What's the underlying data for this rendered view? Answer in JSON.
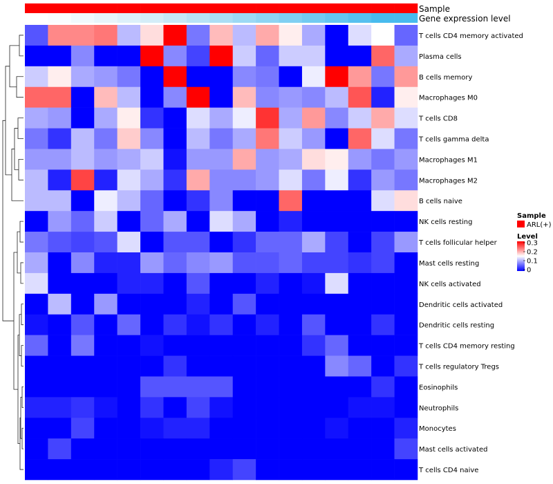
{
  "chart_data": {
    "type": "heatmap",
    "annotation_tracks": [
      "Sample",
      "Gene expression level"
    ],
    "legend": {
      "sample_title": "Sample",
      "sample_entries": [
        {
          "label": "ARL(+)",
          "color": "#ff0000"
        }
      ],
      "level_title": "Level",
      "level_ticks": [
        "0.3",
        "0.2",
        "0.1",
        "0"
      ],
      "level_colors": [
        "#0000ff",
        "#ffffff",
        "#ff0000"
      ],
      "level_range": [
        0,
        0.3
      ]
    },
    "expression_track_colors": [
      "#ffffff",
      "#fafdfe",
      "#f0f9fd",
      "#e7f5fb",
      "#ddf1fa",
      "#d4edf8",
      "#c6e8f7",
      "#b8e3f6",
      "#aadef5",
      "#9cd9f4",
      "#8ed4f3",
      "#80cff2",
      "#72caf1",
      "#64c5f0",
      "#56c0ef",
      "#48bbee"
    ],
    "rows": [
      "T cells CD4 memory activated",
      "Plasma cells",
      "B cells memory",
      "Macrophages M0",
      "T cells CD8",
      "T cells gamma delta",
      "Macrophages M1",
      "Macrophages M2",
      "B cells naive",
      "NK cells resting",
      "T cells follicular helper",
      "Mast cells resting",
      "NK cells activated",
      "Dendritic cells activated",
      "Dendritic cells resting",
      "T cells CD4 memory resting",
      "T cells regulatory  Tregs",
      "Eosinophils",
      "Neutrophils",
      "Monocytes",
      "Mast cells activated",
      "T cells CD4 naive"
    ],
    "values": [
      [
        0.05,
        0.22,
        0.22,
        0.23,
        0.11,
        0.17,
        0.3,
        0.07,
        0.19,
        0.11,
        0.2,
        0.16,
        0.1,
        0.0,
        0.13,
        0.15,
        0.06
      ],
      [
        0.0,
        0.0,
        0.08,
        0.0,
        0.0,
        0.3,
        0.08,
        0.04,
        0.3,
        0.12,
        0.06,
        0.12,
        0.12,
        0.0,
        0.0,
        0.24,
        0.1
      ],
      [
        0.12,
        0.16,
        0.1,
        0.09,
        0.07,
        0.0,
        0.3,
        0.0,
        0.0,
        0.08,
        0.07,
        0.0,
        0.14,
        0.3,
        0.21,
        0.07,
        0.21
      ],
      [
        0.24,
        0.24,
        0.0,
        0.19,
        0.11,
        0.0,
        0.08,
        0.3,
        0.0,
        0.19,
        0.08,
        0.09,
        0.08,
        0.11,
        0.25,
        0.02,
        0.16
      ],
      [
        0.1,
        0.09,
        0.0,
        0.1,
        0.16,
        0.03,
        0.0,
        0.13,
        0.1,
        0.14,
        0.27,
        0.1,
        0.21,
        0.08,
        0.12,
        0.2,
        0.13
      ],
      [
        0.07,
        0.03,
        0.11,
        0.07,
        0.18,
        0.08,
        0.0,
        0.11,
        0.07,
        0.1,
        0.23,
        0.12,
        0.09,
        0.0,
        0.24,
        0.13,
        0.07
      ],
      [
        0.09,
        0.09,
        0.11,
        0.09,
        0.1,
        0.12,
        0.01,
        0.09,
        0.09,
        0.2,
        0.09,
        0.1,
        0.17,
        0.16,
        0.09,
        0.07,
        0.09
      ],
      [
        0.11,
        0.02,
        0.26,
        0.02,
        0.13,
        0.1,
        0.03,
        0.2,
        0.08,
        0.08,
        0.09,
        0.13,
        0.07,
        0.14,
        0.03,
        0.09,
        0.07
      ],
      [
        0.11,
        0.11,
        0.0,
        0.14,
        0.11,
        0.06,
        0.0,
        0.03,
        0.08,
        0.0,
        0.0,
        0.24,
        0.0,
        0.0,
        0.0,
        0.13,
        0.17
      ],
      [
        0.0,
        0.09,
        0.06,
        0.12,
        0.0,
        0.06,
        0.1,
        0.0,
        0.13,
        0.1,
        0.0,
        0.02,
        0.0,
        0.0,
        0.0,
        0.0,
        0.0
      ],
      [
        0.07,
        0.05,
        0.04,
        0.05,
        0.13,
        0.0,
        0.05,
        0.05,
        0.0,
        0.03,
        0.06,
        0.06,
        0.1,
        0.04,
        0.0,
        0.04,
        0.09
      ],
      [
        0.1,
        0.0,
        0.08,
        0.02,
        0.02,
        0.09,
        0.06,
        0.08,
        0.09,
        0.05,
        0.05,
        0.06,
        0.04,
        0.04,
        0.03,
        0.04,
        0.0
      ],
      [
        0.13,
        0.0,
        0.0,
        0.0,
        0.02,
        0.02,
        0.0,
        0.05,
        0.0,
        0.0,
        0.02,
        0.0,
        0.01,
        0.13,
        0.0,
        0.0,
        0.0
      ],
      [
        0.0,
        0.11,
        0.0,
        0.09,
        0.0,
        0.0,
        0.0,
        0.02,
        0.0,
        0.05,
        0.0,
        0.0,
        0.0,
        0.0,
        0.0,
        0.0,
        0.0
      ],
      [
        0.01,
        0.0,
        0.05,
        0.0,
        0.06,
        0.0,
        0.03,
        0.01,
        0.03,
        0.0,
        0.02,
        0.0,
        0.05,
        0.0,
        0.0,
        0.03,
        0.0
      ],
      [
        0.06,
        0.0,
        0.07,
        0.0,
        0.0,
        0.01,
        0.0,
        0.0,
        0.0,
        0.0,
        0.0,
        0.0,
        0.03,
        0.06,
        0.0,
        0.0,
        0.0
      ],
      [
        0.0,
        0.0,
        0.0,
        0.0,
        0.0,
        0.0,
        0.03,
        0.0,
        0.0,
        0.0,
        0.0,
        0.0,
        0.0,
        0.08,
        0.06,
        0.0,
        0.03
      ],
      [
        0.0,
        0.0,
        0.0,
        0.0,
        0.0,
        0.05,
        0.05,
        0.05,
        0.05,
        0.0,
        0.0,
        0.0,
        0.0,
        0.0,
        0.0,
        0.03,
        0.0
      ],
      [
        0.02,
        0.02,
        0.03,
        0.01,
        0.0,
        0.03,
        0.0,
        0.04,
        0.01,
        0.0,
        0.0,
        0.0,
        0.0,
        0.0,
        0.01,
        0.01,
        0.0
      ],
      [
        0.0,
        0.0,
        0.04,
        0.0,
        0.0,
        0.01,
        0.02,
        0.02,
        0.0,
        0.0,
        0.0,
        0.0,
        0.0,
        0.01,
        0.0,
        0.0,
        0.02
      ],
      [
        0.0,
        0.04,
        0.0,
        0.0,
        0.0,
        0.0,
        0.0,
        0.0,
        0.0,
        0.0,
        0.0,
        0.0,
        0.0,
        0.0,
        0.0,
        0.0,
        0.04
      ],
      [
        0.0,
        0.0,
        0.0,
        0.0,
        0.0,
        0.0,
        0.0,
        0.0,
        0.02,
        0.04,
        0.0,
        0.0,
        0.0,
        0.0,
        0.0,
        0.0,
        0.0
      ]
    ]
  }
}
